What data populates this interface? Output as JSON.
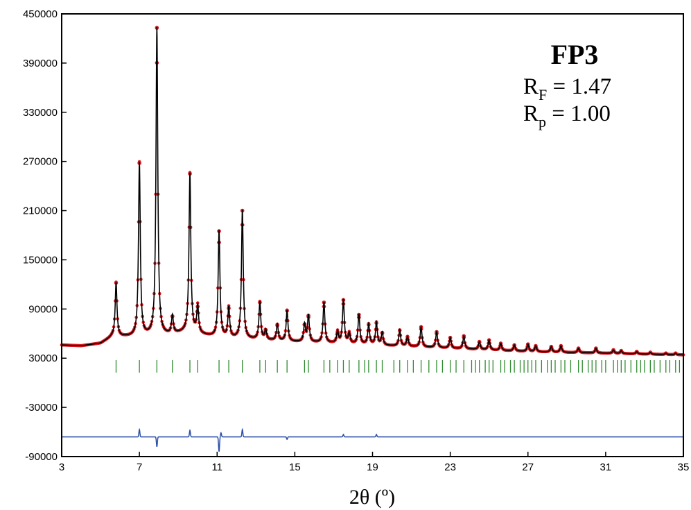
{
  "chart_data": {
    "type": "line",
    "title": "FP3",
    "annotations": [
      {
        "symbol": "R",
        "subscript": "F",
        "text": " = 1.47"
      },
      {
        "symbol": "R",
        "subscript": "p",
        "text": " = 1.00"
      }
    ],
    "xlabel": "2θ (º)",
    "ylabel": "",
    "xlim": [
      3,
      35
    ],
    "ylim": [
      -90000,
      450000
    ],
    "xticks": [
      "3",
      "7",
      "11",
      "15",
      "19",
      "23",
      "27",
      "31",
      "35"
    ],
    "yticks": [
      "450000",
      "390000",
      "330000",
      "270000",
      "210000",
      "150000",
      "90000",
      "30000",
      "-30000",
      "-90000"
    ],
    "grid": false,
    "colors": {
      "observed": "#d71920",
      "calculated": "#000000",
      "reflections": "#2e8b2e",
      "difference": "#2a4fa8"
    },
    "background": [
      [
        3,
        46000
      ],
      [
        4,
        45000
      ],
      [
        5,
        48000
      ],
      [
        5.6,
        56000
      ],
      [
        7.0,
        56000
      ],
      [
        8.5,
        58000
      ],
      [
        9.5,
        62000
      ],
      [
        10.3,
        58000
      ],
      [
        11,
        55000
      ],
      [
        12.5,
        53000
      ],
      [
        15,
        50000
      ],
      [
        19,
        46000
      ],
      [
        23,
        42000
      ],
      [
        27,
        38000
      ],
      [
        31,
        36000
      ],
      [
        35,
        34000
      ]
    ],
    "peaks": [
      [
        5.8,
        122000
      ],
      [
        7.0,
        268000
      ],
      [
        7.9,
        433000
      ],
      [
        8.7,
        81000
      ],
      [
        9.6,
        255000
      ],
      [
        10.0,
        93000
      ],
      [
        11.1,
        185000
      ],
      [
        11.6,
        91000
      ],
      [
        12.3,
        210000
      ],
      [
        13.2,
        98000
      ],
      [
        13.5,
        64000
      ],
      [
        14.1,
        71000
      ],
      [
        14.6,
        88000
      ],
      [
        15.5,
        71000
      ],
      [
        15.7,
        82000
      ],
      [
        16.5,
        98000
      ],
      [
        17.2,
        62000
      ],
      [
        17.5,
        101000
      ],
      [
        17.8,
        60000
      ],
      [
        18.3,
        83000
      ],
      [
        18.8,
        71000
      ],
      [
        19.2,
        73000
      ],
      [
        19.5,
        61000
      ],
      [
        20.4,
        64000
      ],
      [
        20.8,
        56000
      ],
      [
        21.5,
        68000
      ],
      [
        22.3,
        62000
      ],
      [
        23.0,
        55000
      ],
      [
        23.7,
        57000
      ],
      [
        24.5,
        50000
      ],
      [
        25.0,
        52000
      ],
      [
        25.6,
        48000
      ],
      [
        26.3,
        46000
      ],
      [
        27.0,
        47000
      ],
      [
        27.4,
        45000
      ],
      [
        28.2,
        44000
      ],
      [
        28.7,
        45000
      ],
      [
        29.6,
        42000
      ],
      [
        30.5,
        42000
      ],
      [
        31.4,
        40000
      ],
      [
        31.8,
        39000
      ],
      [
        32.6,
        38000
      ],
      [
        33.3,
        37000
      ],
      [
        34.1,
        36000
      ],
      [
        34.6,
        36000
      ]
    ],
    "reflections": [
      5.8,
      7.0,
      7.9,
      8.7,
      9.6,
      10.0,
      11.1,
      11.6,
      12.3,
      13.2,
      13.5,
      14.1,
      14.6,
      15.5,
      15.7,
      16.5,
      16.8,
      17.2,
      17.5,
      17.8,
      18.3,
      18.6,
      18.8,
      19.2,
      19.5,
      20.1,
      20.4,
      20.8,
      21.1,
      21.5,
      21.9,
      22.3,
      22.6,
      23.0,
      23.3,
      23.7,
      24.1,
      24.3,
      24.5,
      24.8,
      25.0,
      25.2,
      25.6,
      25.8,
      26.1,
      26.3,
      26.6,
      26.8,
      27.0,
      27.2,
      27.4,
      27.7,
      28.0,
      28.2,
      28.4,
      28.7,
      28.9,
      29.2,
      29.6,
      29.8,
      30.1,
      30.3,
      30.5,
      30.8,
      31.0,
      31.4,
      31.6,
      31.8,
      32.0,
      32.3,
      32.6,
      32.8,
      33.0,
      33.3,
      33.5,
      33.8,
      34.1,
      34.3,
      34.6,
      34.8
    ],
    "reflection_level": 20000,
    "difference_baseline": -66000,
    "difference_features": [
      [
        7.0,
        9000
      ],
      [
        7.9,
        -12000
      ],
      [
        9.6,
        8000
      ],
      [
        11.1,
        -18000
      ],
      [
        11.2,
        5000
      ],
      [
        12.3,
        9000
      ],
      [
        14.6,
        -3000
      ],
      [
        17.5,
        3000
      ],
      [
        19.2,
        3000
      ]
    ]
  }
}
